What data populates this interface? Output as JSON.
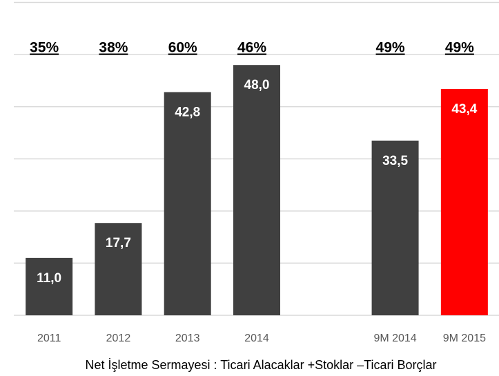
{
  "chart_data": {
    "type": "bar",
    "categories": [
      "2011",
      "2012",
      "2013",
      "2014",
      null,
      "9M 2014",
      "9M 2015"
    ],
    "values": [
      11.0,
      17.7,
      42.8,
      48.0,
      null,
      33.5,
      43.4
    ],
    "value_labels": [
      "11,0",
      "17,7",
      "42,8",
      "48,0",
      null,
      "33,5",
      "43,4"
    ],
    "annotations": [
      "35%",
      "38%",
      "60%",
      "46%",
      null,
      "49%",
      "49%"
    ],
    "colors": [
      "#404040",
      "#404040",
      "#404040",
      "#404040",
      null,
      "#404040",
      "#ff0000"
    ],
    "ylim": [
      0,
      60
    ],
    "yticks": [
      0,
      10,
      20,
      30,
      40,
      50,
      60
    ],
    "grid": true,
    "footnote": "Net İşletme Sermayesi : Ticari Alacaklar +Stoklar –Ticari Borçlar"
  }
}
